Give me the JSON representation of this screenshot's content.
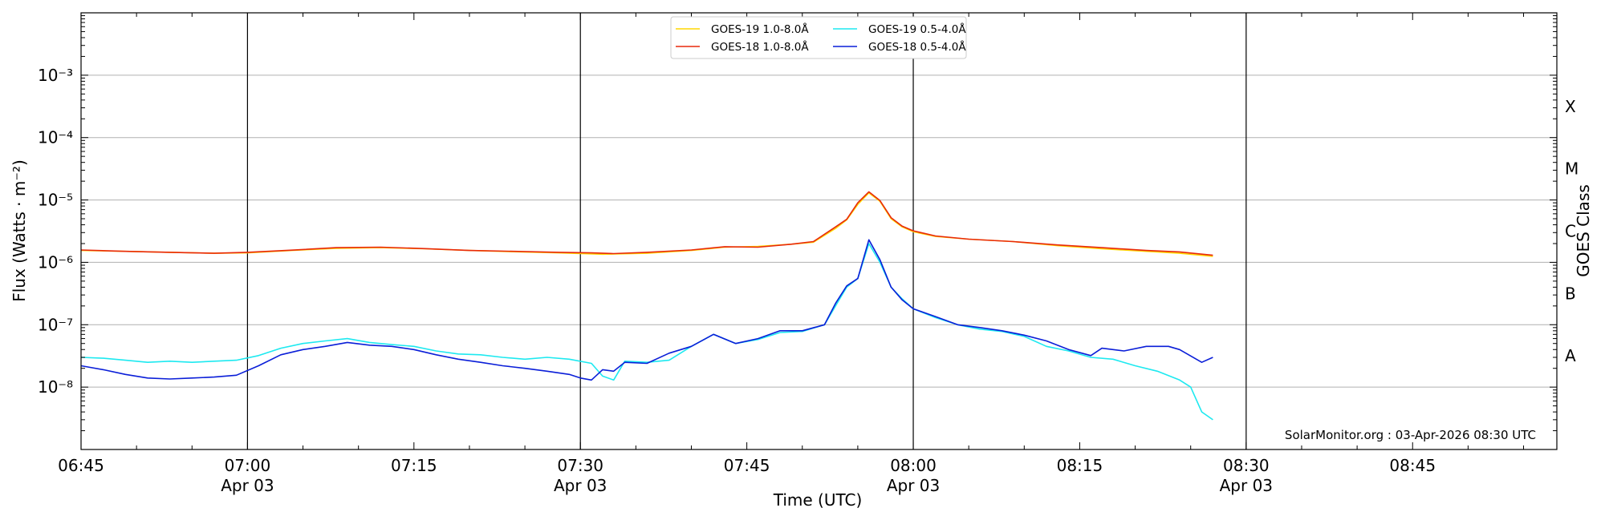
{
  "chart_data": {
    "type": "line",
    "title": "",
    "xlabel": "Time (UTC)",
    "ylabel": "Flux (Watts · m⁻²)",
    "ylabel_right": "GOES Class",
    "y_scale": "log",
    "ylim": [
      1e-09,
      0.01
    ],
    "xlim": [
      "06:45",
      "08:58"
    ],
    "grid": "horizontal",
    "legend_position": "top-center",
    "y_ticks": [
      {
        "value": 1e-08,
        "label": "10⁻⁸"
      },
      {
        "value": 1e-07,
        "label": "10⁻⁷"
      },
      {
        "value": 1e-06,
        "label": "10⁻⁶"
      },
      {
        "value": 1e-05,
        "label": "10⁻⁵"
      },
      {
        "value": 0.0001,
        "label": "10⁻⁴"
      },
      {
        "value": 0.001,
        "label": "10⁻³"
      }
    ],
    "x_ticks": [
      {
        "time": "06:45",
        "label": "06:45",
        "date": ""
      },
      {
        "time": "07:00",
        "label": "07:00",
        "date": "Apr 03"
      },
      {
        "time": "07:15",
        "label": "07:15",
        "date": ""
      },
      {
        "time": "07:30",
        "label": "07:30",
        "date": "Apr 03"
      },
      {
        "time": "07:45",
        "label": "07:45",
        "date": ""
      },
      {
        "time": "08:00",
        "label": "08:00",
        "date": "Apr 03"
      },
      {
        "time": "08:15",
        "label": "08:15",
        "date": ""
      },
      {
        "time": "08:30",
        "label": "08:30",
        "date": "Apr 03"
      },
      {
        "time": "08:45",
        "label": "08:45",
        "date": ""
      }
    ],
    "vertical_lines": [
      "07:00",
      "07:30",
      "08:00",
      "08:30"
    ],
    "goes_classes": [
      {
        "label": "A",
        "value": 3.16e-08
      },
      {
        "label": "B",
        "value": 3.16e-07
      },
      {
        "label": "C",
        "value": 3.16e-06
      },
      {
        "label": "M",
        "value": 3.16e-05
      },
      {
        "label": "X",
        "value": 0.000316
      }
    ],
    "annotation": "SolarMonitor.org : 03-Apr-2026 08:30 UTC",
    "series": [
      {
        "name": "GOES-19 1.0-8.0Å",
        "color": "#ffd700",
        "points": [
          [
            "06:45",
            1.55e-06
          ],
          [
            "06:49",
            1.5e-06
          ],
          [
            "06:53",
            1.45e-06
          ],
          [
            "06:57",
            1.4e-06
          ],
          [
            "07:00",
            1.42e-06
          ],
          [
            "07:04",
            1.55e-06
          ],
          [
            "07:08",
            1.68e-06
          ],
          [
            "07:12",
            1.72e-06
          ],
          [
            "07:16",
            1.65e-06
          ],
          [
            "07:20",
            1.55e-06
          ],
          [
            "07:24",
            1.48e-06
          ],
          [
            "07:28",
            1.42e-06
          ],
          [
            "07:32",
            1.35e-06
          ],
          [
            "07:36",
            1.4e-06
          ],
          [
            "07:40",
            1.55e-06
          ],
          [
            "07:43",
            1.75e-06
          ],
          [
            "07:46",
            1.8e-06
          ],
          [
            "07:49",
            1.95e-06
          ],
          [
            "07:51",
            2.1e-06
          ],
          [
            "07:53",
            3.5e-06
          ],
          [
            "07:54",
            4.8e-06
          ],
          [
            "07:55",
            8.5e-06
          ],
          [
            "07:56",
            1.3e-05
          ],
          [
            "07:57",
            9.5e-06
          ],
          [
            "07:58",
            5e-06
          ],
          [
            "07:59",
            3.7e-06
          ],
          [
            "08:00",
            3.1e-06
          ],
          [
            "08:02",
            2.6e-06
          ],
          [
            "08:05",
            2.35e-06
          ],
          [
            "08:09",
            2.15e-06
          ],
          [
            "08:13",
            1.85e-06
          ],
          [
            "08:17",
            1.65e-06
          ],
          [
            "08:21",
            1.5e-06
          ],
          [
            "08:24",
            1.4e-06
          ],
          [
            "08:27",
            1.25e-06
          ]
        ]
      },
      {
        "name": "GOES-18 1.0-8.0Å",
        "color": "#e8290b",
        "points": [
          [
            "06:45",
            1.58e-06
          ],
          [
            "06:49",
            1.5e-06
          ],
          [
            "06:53",
            1.45e-06
          ],
          [
            "06:57",
            1.4e-06
          ],
          [
            "07:00",
            1.45e-06
          ],
          [
            "07:04",
            1.57e-06
          ],
          [
            "07:08",
            1.72e-06
          ],
          [
            "07:12",
            1.75e-06
          ],
          [
            "07:16",
            1.66e-06
          ],
          [
            "07:20",
            1.55e-06
          ],
          [
            "07:24",
            1.5e-06
          ],
          [
            "07:28",
            1.45e-06
          ],
          [
            "07:31",
            1.42e-06
          ],
          [
            "07:33",
            1.38e-06
          ],
          [
            "07:36",
            1.45e-06
          ],
          [
            "07:40",
            1.58e-06
          ],
          [
            "07:43",
            1.78e-06
          ],
          [
            "07:46",
            1.75e-06
          ],
          [
            "07:49",
            1.95e-06
          ],
          [
            "07:51",
            2.15e-06
          ],
          [
            "07:53",
            3.7e-06
          ],
          [
            "07:54",
            4.9e-06
          ],
          [
            "07:55",
            9e-06
          ],
          [
            "07:56",
            1.35e-05
          ],
          [
            "07:57",
            9.8e-06
          ],
          [
            "07:58",
            5.2e-06
          ],
          [
            "07:59",
            3.8e-06
          ],
          [
            "08:00",
            3.2e-06
          ],
          [
            "08:02",
            2.65e-06
          ],
          [
            "08:05",
            2.35e-06
          ],
          [
            "08:09",
            2.15e-06
          ],
          [
            "08:13",
            1.9e-06
          ],
          [
            "08:17",
            1.72e-06
          ],
          [
            "08:21",
            1.55e-06
          ],
          [
            "08:24",
            1.47e-06
          ],
          [
            "08:27",
            1.3e-06
          ]
        ]
      },
      {
        "name": "GOES-19 0.5-4.0Å",
        "color": "#1de9f0",
        "points": [
          [
            "06:45",
            3e-08
          ],
          [
            "06:47",
            2.9e-08
          ],
          [
            "06:49",
            2.7e-08
          ],
          [
            "06:51",
            2.5e-08
          ],
          [
            "06:53",
            2.6e-08
          ],
          [
            "06:55",
            2.5e-08
          ],
          [
            "06:57",
            2.6e-08
          ],
          [
            "06:59",
            2.7e-08
          ],
          [
            "07:01",
            3.2e-08
          ],
          [
            "07:03",
            4.2e-08
          ],
          [
            "07:05",
            5e-08
          ],
          [
            "07:07",
            5.5e-08
          ],
          [
            "07:09",
            6e-08
          ],
          [
            "07:11",
            5.2e-08
          ],
          [
            "07:13",
            4.8e-08
          ],
          [
            "07:15",
            4.5e-08
          ],
          [
            "07:17",
            3.8e-08
          ],
          [
            "07:19",
            3.4e-08
          ],
          [
            "07:21",
            3.3e-08
          ],
          [
            "07:23",
            3e-08
          ],
          [
            "07:25",
            2.8e-08
          ],
          [
            "07:27",
            3e-08
          ],
          [
            "07:29",
            2.8e-08
          ],
          [
            "07:31",
            2.4e-08
          ],
          [
            "07:32",
            1.5e-08
          ],
          [
            "07:33",
            1.3e-08
          ],
          [
            "07:34",
            2.6e-08
          ],
          [
            "07:36",
            2.5e-08
          ],
          [
            "07:38",
            2.7e-08
          ],
          [
            "07:40",
            4.5e-08
          ],
          [
            "07:42",
            7e-08
          ],
          [
            "07:44",
            5e-08
          ],
          [
            "07:46",
            5.8e-08
          ],
          [
            "07:48",
            7.5e-08
          ],
          [
            "07:50",
            7.8e-08
          ],
          [
            "07:52",
            1e-07
          ],
          [
            "07:53",
            2e-07
          ],
          [
            "07:54",
            4e-07
          ],
          [
            "07:55",
            5.5e-07
          ],
          [
            "07:56",
            2e-06
          ],
          [
            "07:57",
            1e-06
          ],
          [
            "07:58",
            4e-07
          ],
          [
            "07:59",
            2.6e-07
          ],
          [
            "08:00",
            1.8e-07
          ],
          [
            "08:02",
            1.3e-07
          ],
          [
            "08:04",
            1e-07
          ],
          [
            "08:06",
            8.5e-08
          ],
          [
            "08:08",
            7.8e-08
          ],
          [
            "08:10",
            6.5e-08
          ],
          [
            "08:12",
            4.5e-08
          ],
          [
            "08:14",
            3.8e-08
          ],
          [
            "08:16",
            3e-08
          ],
          [
            "08:18",
            2.8e-08
          ],
          [
            "08:20",
            2.2e-08
          ],
          [
            "08:22",
            1.8e-08
          ],
          [
            "08:24",
            1.3e-08
          ],
          [
            "08:25",
            1e-08
          ],
          [
            "08:26",
            4e-09
          ],
          [
            "08:27",
            3e-09
          ]
        ]
      },
      {
        "name": "GOES-18 0.5-4.0Å",
        "color": "#0a1ed8",
        "points": [
          [
            "06:45",
            2.2e-08
          ],
          [
            "06:47",
            1.9e-08
          ],
          [
            "06:49",
            1.6e-08
          ],
          [
            "06:51",
            1.4e-08
          ],
          [
            "06:53",
            1.35e-08
          ],
          [
            "06:55",
            1.4e-08
          ],
          [
            "06:57",
            1.45e-08
          ],
          [
            "06:59",
            1.55e-08
          ],
          [
            "07:01",
            2.2e-08
          ],
          [
            "07:03",
            3.3e-08
          ],
          [
            "07:05",
            4e-08
          ],
          [
            "07:07",
            4.5e-08
          ],
          [
            "07:09",
            5.2e-08
          ],
          [
            "07:11",
            4.7e-08
          ],
          [
            "07:13",
            4.5e-08
          ],
          [
            "07:15",
            4e-08
          ],
          [
            "07:17",
            3.3e-08
          ],
          [
            "07:19",
            2.8e-08
          ],
          [
            "07:21",
            2.5e-08
          ],
          [
            "07:23",
            2.2e-08
          ],
          [
            "07:25",
            2e-08
          ],
          [
            "07:27",
            1.8e-08
          ],
          [
            "07:29",
            1.6e-08
          ],
          [
            "07:30",
            1.4e-08
          ],
          [
            "07:31",
            1.3e-08
          ],
          [
            "07:32",
            1.9e-08
          ],
          [
            "07:33",
            1.8e-08
          ],
          [
            "07:34",
            2.5e-08
          ],
          [
            "07:36",
            2.4e-08
          ],
          [
            "07:38",
            3.5e-08
          ],
          [
            "07:40",
            4.5e-08
          ],
          [
            "07:42",
            7e-08
          ],
          [
            "07:44",
            5e-08
          ],
          [
            "07:46",
            6e-08
          ],
          [
            "07:48",
            8e-08
          ],
          [
            "07:50",
            8e-08
          ],
          [
            "07:52",
            1e-07
          ],
          [
            "07:53",
            2.2e-07
          ],
          [
            "07:54",
            4.2e-07
          ],
          [
            "07:55",
            5.5e-07
          ],
          [
            "07:56",
            2.3e-06
          ],
          [
            "07:57",
            1.1e-06
          ],
          [
            "07:58",
            4e-07
          ],
          [
            "07:59",
            2.5e-07
          ],
          [
            "08:00",
            1.8e-07
          ],
          [
            "08:02",
            1.35e-07
          ],
          [
            "08:04",
            1e-07
          ],
          [
            "08:06",
            9e-08
          ],
          [
            "08:08",
            8e-08
          ],
          [
            "08:10",
            6.8e-08
          ],
          [
            "08:12",
            5.5e-08
          ],
          [
            "08:14",
            4e-08
          ],
          [
            "08:16",
            3.2e-08
          ],
          [
            "08:17",
            4.2e-08
          ],
          [
            "08:19",
            3.8e-08
          ],
          [
            "08:21",
            4.5e-08
          ],
          [
            "08:23",
            4.5e-08
          ],
          [
            "08:24",
            4e-08
          ],
          [
            "08:26",
            2.5e-08
          ],
          [
            "08:27",
            3e-08
          ]
        ]
      }
    ]
  }
}
